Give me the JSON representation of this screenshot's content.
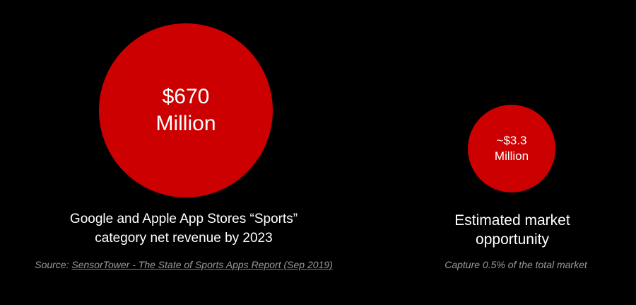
{
  "colors": {
    "background": "#000000",
    "circle": "#cc0000",
    "text": "#ffffff",
    "note": "#9a9a9a",
    "link_underline": "#3b6fb0"
  },
  "left": {
    "amount": "$670",
    "unit": "Million",
    "caption_line1": "Google and Apple App Stores “Sports”",
    "caption_line2": "category net revenue by 2023",
    "source_prefix": "Source: ",
    "source_link": "SensorTower - The State of Sports Apps Report (Sep 2019)"
  },
  "right": {
    "amount": "~$3.3",
    "unit": "Million",
    "caption_line1": "Estimated market",
    "caption_line2": "opportunity",
    "note": "Capture 0.5% of the total market"
  }
}
